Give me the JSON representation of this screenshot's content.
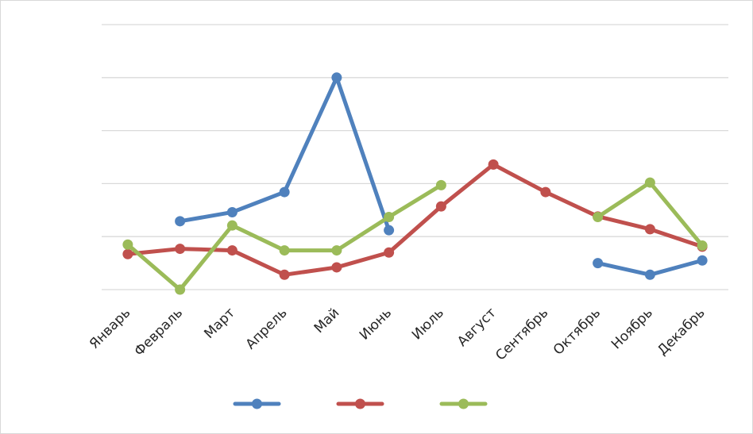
{
  "chart_data": {
    "type": "line",
    "title": "",
    "xlabel": "",
    "ylabel": "",
    "categories": [
      "Январь",
      "Февраль",
      "Март",
      "Апрель",
      "Май",
      "Июнь",
      "Июль",
      "Август",
      "Сентябрь",
      "Октябрь",
      "Ноябрь",
      "Декабрь"
    ],
    "ylim": [
      0,
      5
    ],
    "yticks_count": 6,
    "grid": true,
    "legend_placement": "bottom",
    "y_tick_labels_shown": false,
    "series": [
      {
        "color": "#4f81bd",
        "values": [
          null,
          1.29,
          1.46,
          1.84,
          4.0,
          1.12,
          null,
          null,
          null,
          0.5,
          0.28,
          0.55
        ]
      },
      {
        "color": "#c0504d",
        "values": [
          0.67,
          0.77,
          0.74,
          0.28,
          0.42,
          0.7,
          1.57,
          2.36,
          1.84,
          1.38,
          1.14,
          0.81
        ]
      },
      {
        "color": "#9bbb59",
        "values": [
          0.85,
          0.0,
          1.21,
          0.74,
          0.74,
          1.37,
          1.97,
          null,
          null,
          1.37,
          2.02,
          0.83
        ]
      }
    ]
  }
}
